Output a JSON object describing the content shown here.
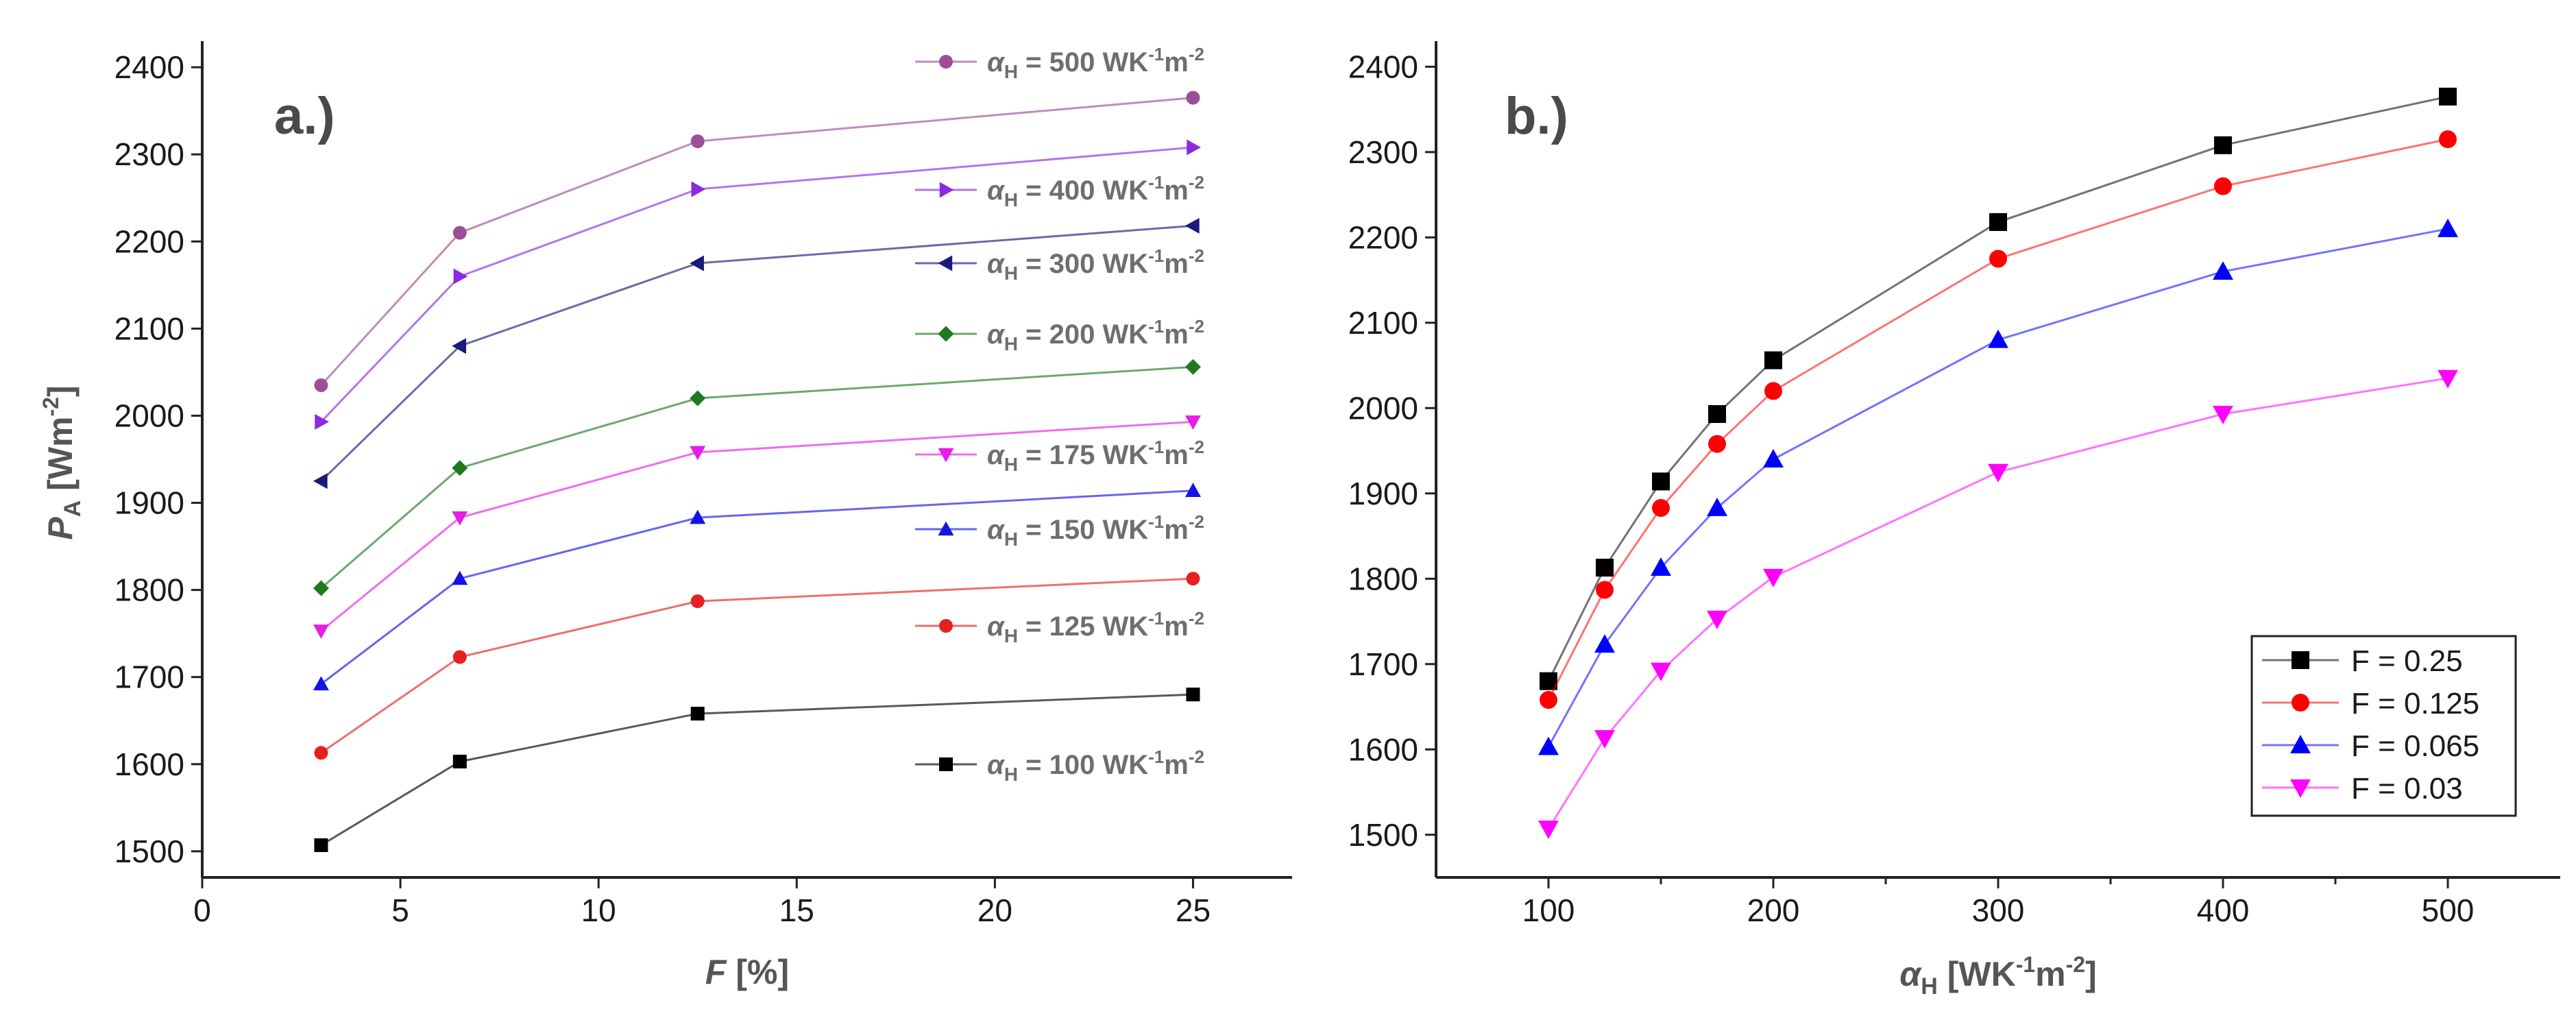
{
  "chart_data": [
    {
      "panel_label": "a.)",
      "type": "line",
      "xlabel": {
        "main": "F",
        "unit": " [%]"
      },
      "ylabel": {
        "main": "P",
        "sub": "A",
        "unit_open": " [Wm",
        "unit_sup": "-2",
        "unit_close": "]"
      },
      "xlim": [
        0,
        27.5
      ],
      "ylim": [
        1470,
        2430
      ],
      "xticks": [
        0,
        5,
        10,
        15,
        20,
        25
      ],
      "yticks": [
        1500,
        1600,
        1700,
        1800,
        1900,
        2000,
        2100,
        2200,
        2300,
        2400
      ],
      "x": [
        3,
        6.5,
        12.5,
        25
      ],
      "legend_text": {
        "sym": "α",
        "sub": "H",
        "eq": " = ",
        "unit_pre": " WK",
        "unit_sup1": "-1",
        "unit_mid": "m",
        "unit_sup2": "-2"
      },
      "series": [
        {
          "name": "500",
          "color": "#9c4f96",
          "marker": "circle",
          "values": [
            2035,
            2210,
            2315,
            2365
          ]
        },
        {
          "name": "400",
          "color": "#8a2be2",
          "marker": "tri-right",
          "values": [
            1993,
            2160,
            2260,
            2308
          ]
        },
        {
          "name": "300",
          "color": "#1a1a7a",
          "marker": "tri-left",
          "values": [
            1925,
            2080,
            2175,
            2218
          ]
        },
        {
          "name": "200",
          "color": "#1f7a1f",
          "marker": "diamond",
          "values": [
            1802,
            1940,
            2020,
            2056
          ]
        },
        {
          "name": "175",
          "color": "#e61ee6",
          "marker": "tri-down",
          "values": [
            1753,
            1883,
            1958,
            1993
          ]
        },
        {
          "name": "150",
          "color": "#1414e6",
          "marker": "tri-up",
          "values": [
            1692,
            1813,
            1883,
            1914
          ]
        },
        {
          "name": "125",
          "color": "#e62020",
          "marker": "circle",
          "values": [
            1613,
            1723,
            1787,
            1813
          ]
        },
        {
          "name": "100",
          "color": "#000000",
          "marker": "square",
          "values": [
            1507,
            1603,
            1658,
            1680
          ]
        }
      ]
    },
    {
      "panel_label": "b.)",
      "type": "line",
      "xlabel": {
        "main": "α",
        "sub": "H",
        "unit_pre": " [WK",
        "unit_sup1": "-1",
        "unit_mid": "m",
        "unit_sup2": "-2",
        "unit_close": "]"
      },
      "ylabel": "",
      "xlim": [
        50,
        550
      ],
      "ylim": [
        1450,
        2430
      ],
      "xticks": [
        100,
        200,
        300,
        400,
        500
      ],
      "yticks": [
        1500,
        1600,
        1700,
        1800,
        1900,
        2000,
        2100,
        2200,
        2300,
        2400
      ],
      "x": [
        100,
        125,
        150,
        175,
        200,
        300,
        400,
        500
      ],
      "series": [
        {
          "name": "F = 0.25",
          "color": "#000000",
          "marker": "square",
          "values": [
            1680,
            1813,
            1914,
            1993,
            2056,
            2218,
            2308,
            2365
          ]
        },
        {
          "name": "F = 0.125",
          "color": "#ff0000",
          "marker": "circle",
          "values": [
            1658,
            1787,
            1883,
            1958,
            2020,
            2175,
            2260,
            2315
          ]
        },
        {
          "name": "F = 0.065",
          "color": "#0000ff",
          "marker": "tri-up",
          "values": [
            1603,
            1723,
            1813,
            1883,
            1940,
            2080,
            2160,
            2210
          ]
        },
        {
          "name": "F = 0.03",
          "color": "#ff00ff",
          "marker": "tri-down",
          "values": [
            1507,
            1613,
            1692,
            1753,
            1802,
            1925,
            1993,
            2035
          ]
        }
      ]
    }
  ]
}
